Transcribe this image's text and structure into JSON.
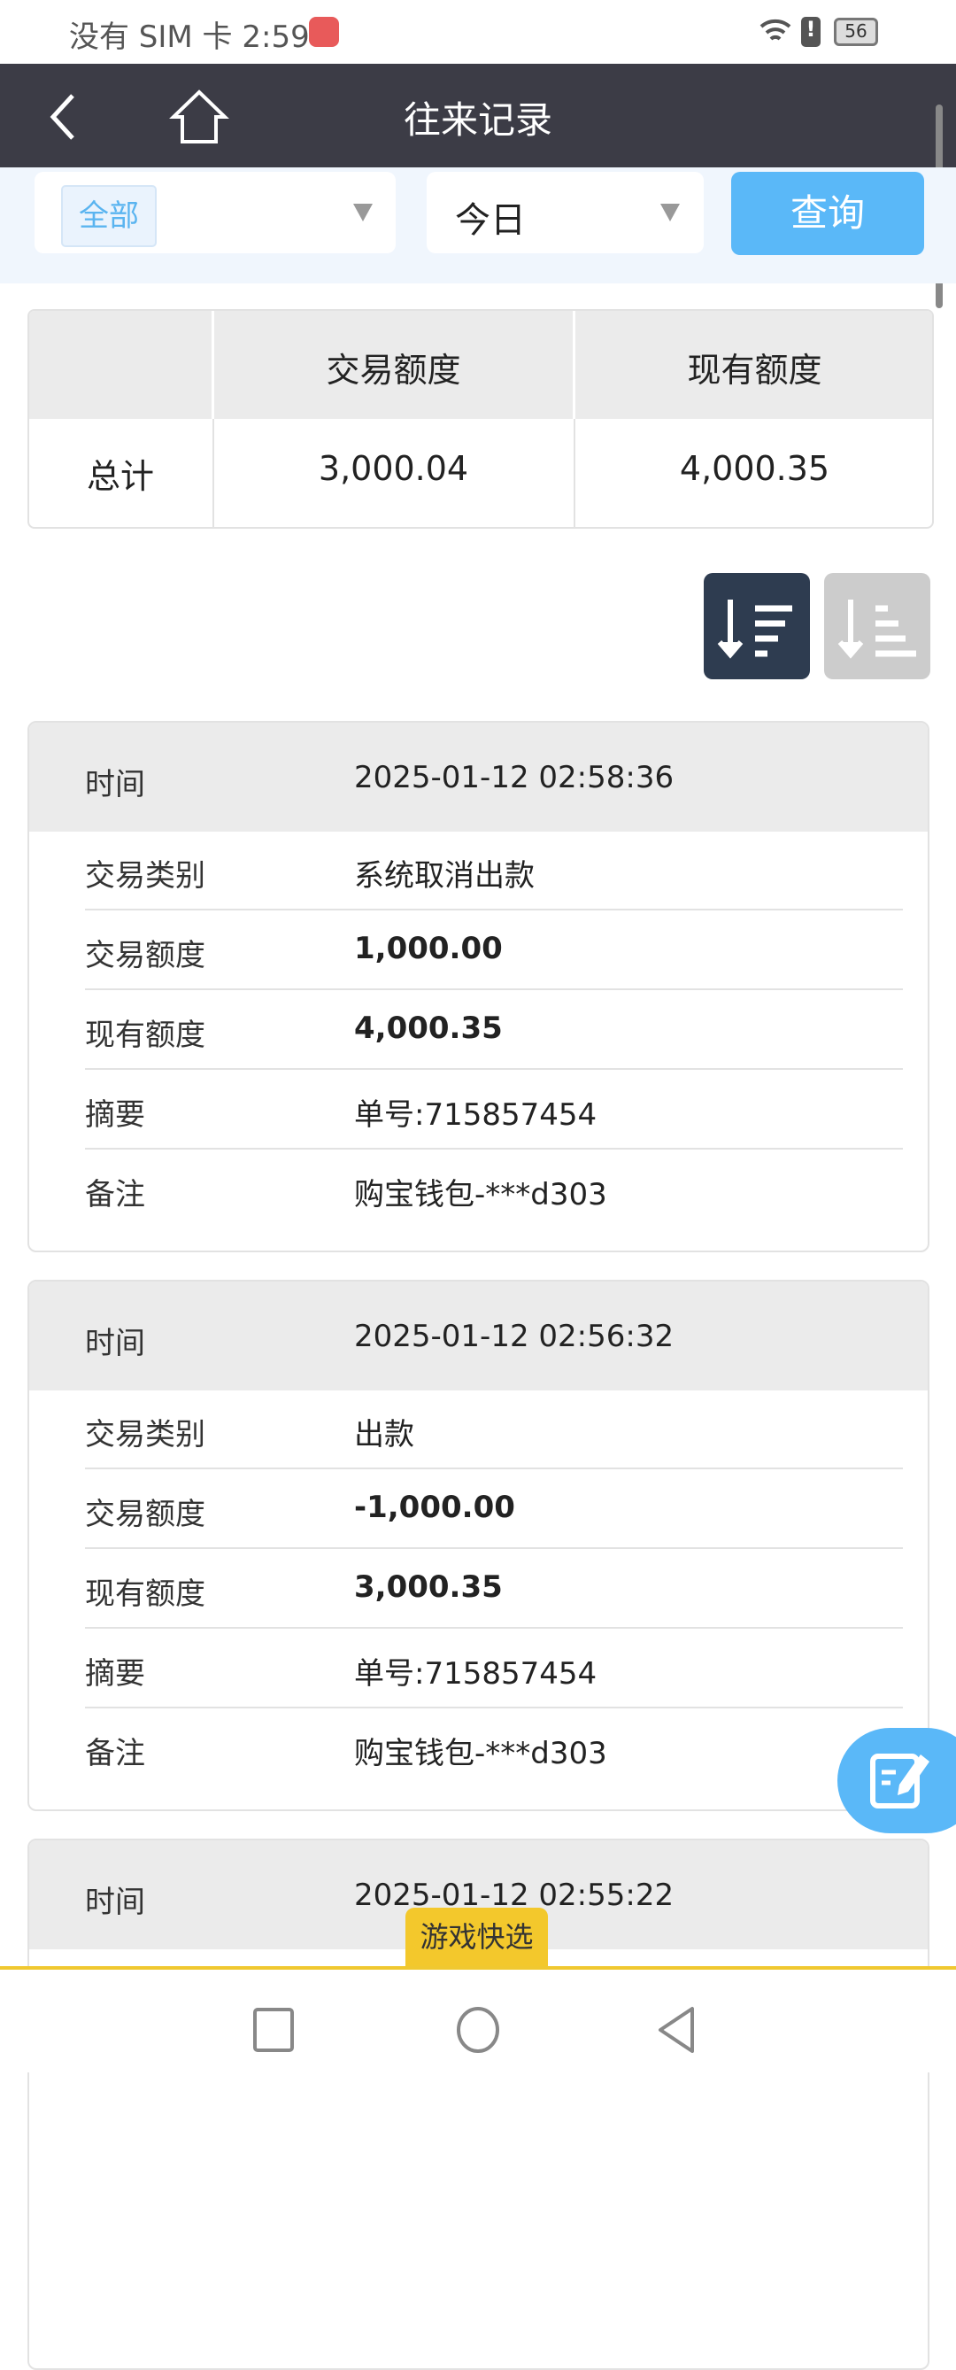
{
  "status_bar": {
    "carrier_time": "没有 SIM 卡 2:59",
    "battery": "56"
  },
  "header": {
    "title": "往来记录"
  },
  "filter": {
    "category": "全部",
    "period": "今日",
    "query_label": "查询"
  },
  "summary": {
    "headers": [
      "交易额度",
      "现有额度"
    ],
    "row_label": "总计",
    "values": [
      "3,000.04",
      "4,000.35"
    ]
  },
  "labels": {
    "time": "时间",
    "type": "交易类别",
    "amount": "交易额度",
    "balance": "现有额度",
    "summary": "摘要",
    "remark": "备注"
  },
  "records": [
    {
      "time": "2025-01-12 02:58:36",
      "type": "系统取消出款",
      "amount": "1,000.00",
      "balance": "4,000.35",
      "summary": "单号:715857454",
      "remark": "购宝钱包-***d303"
    },
    {
      "time": "2025-01-12 02:56:32",
      "type": "出款",
      "amount": "-1,000.00",
      "balance": "3,000.35",
      "summary": "单号:715857454",
      "remark": "购宝钱包-***d303"
    },
    {
      "time": "2025-01-12 02:55:22"
    }
  ],
  "bottom": {
    "game_quick": "游戏快选"
  },
  "colors": {
    "header": "#3c3c46",
    "accent": "#5ab8f8",
    "sort_active": "#2e3c50",
    "highlight": "#f3c82c"
  }
}
